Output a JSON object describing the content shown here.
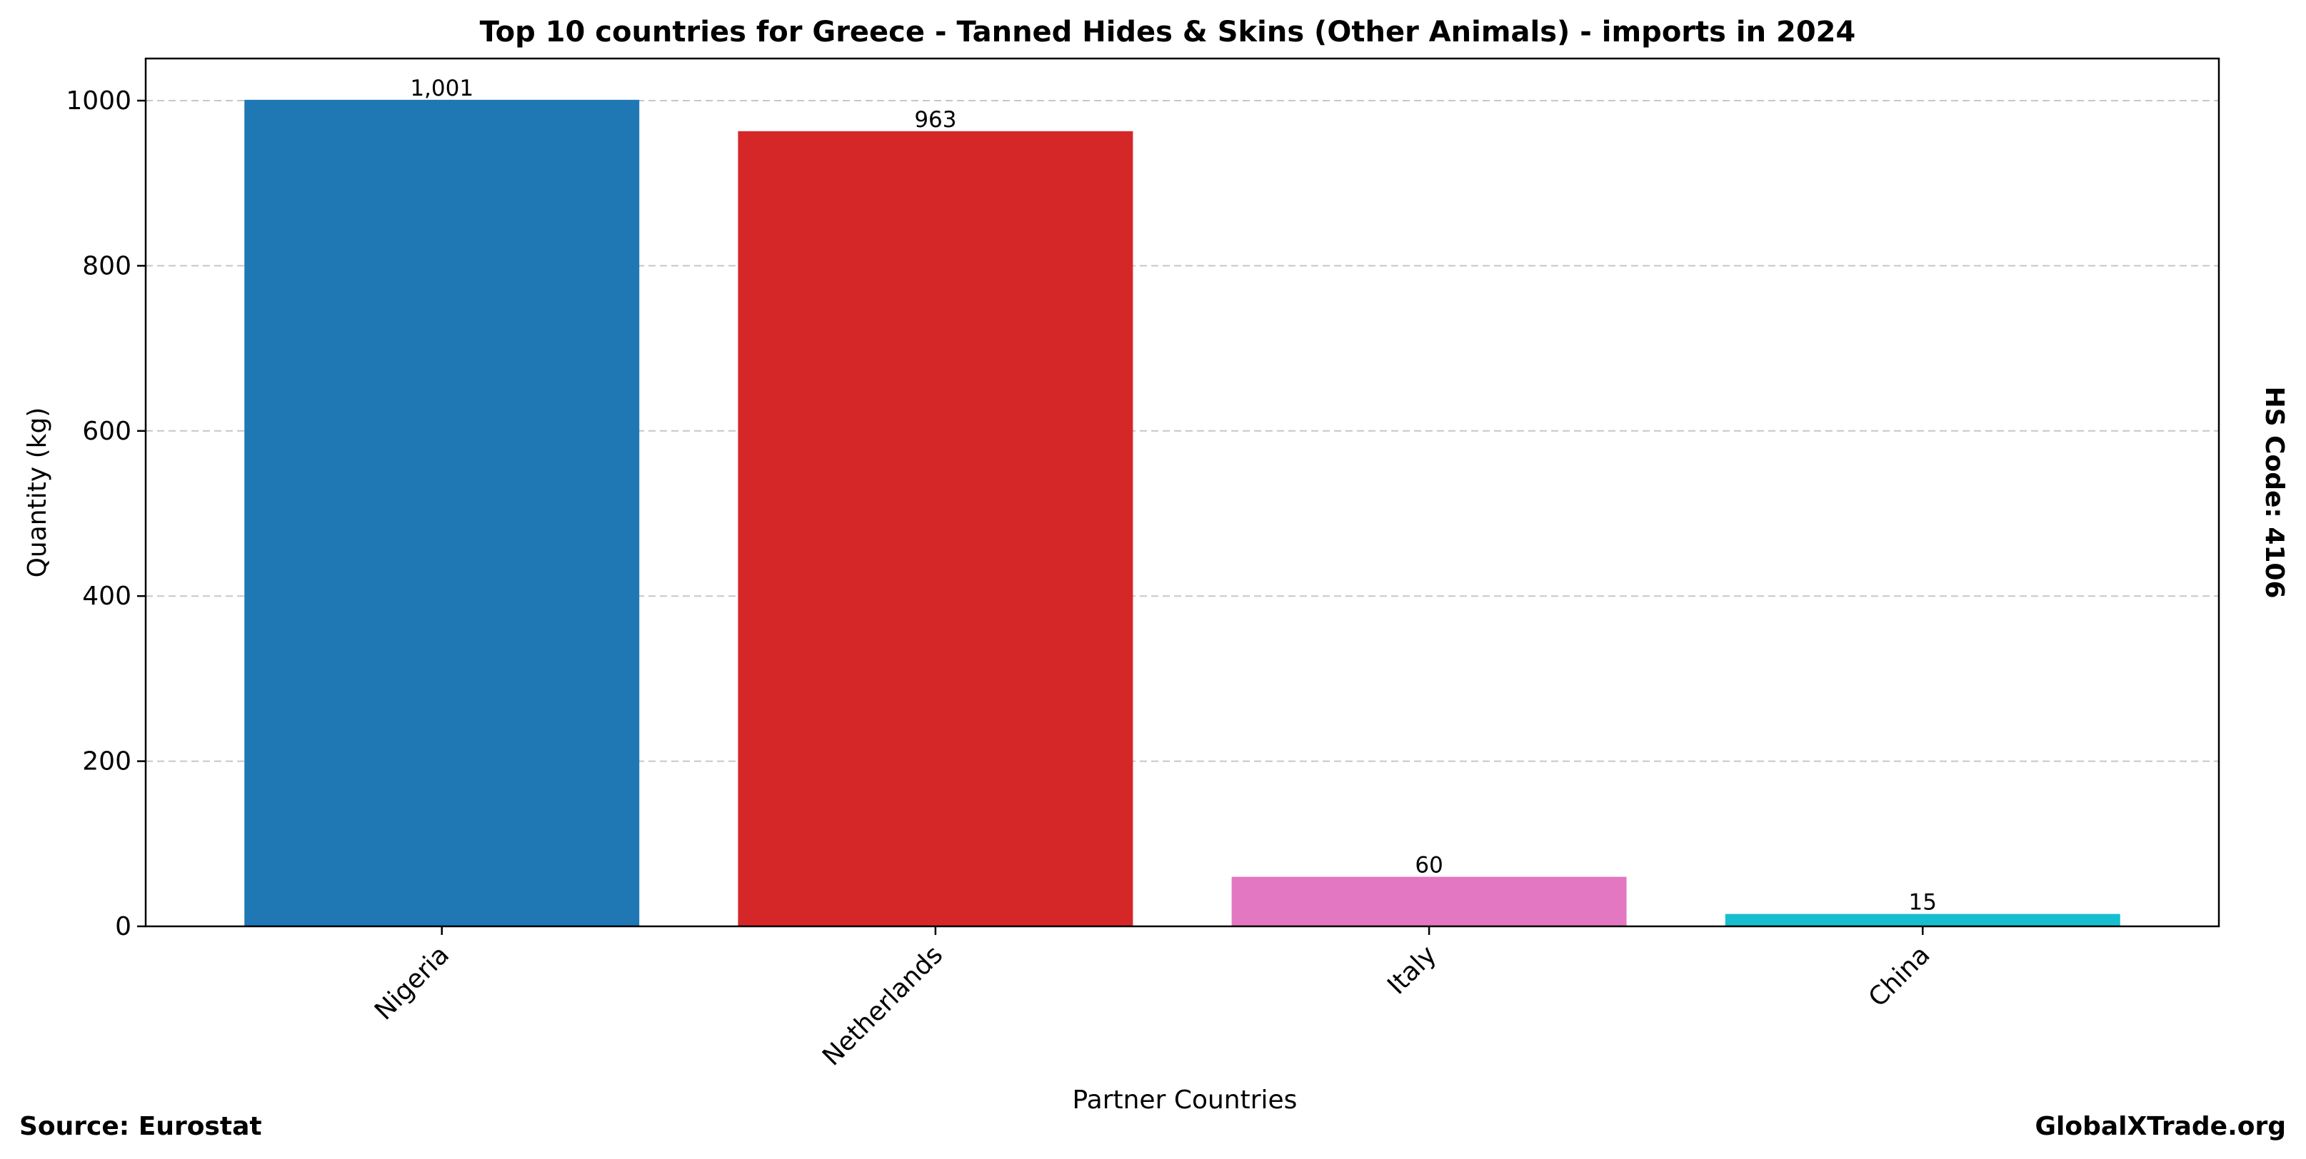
{
  "chart_data": {
    "type": "bar",
    "title": "Top 10 countries for Greece - Tanned Hides & Skins (Other Animals) - imports in 2024",
    "xlabel": "Partner Countries",
    "ylabel": "Quantity (kg)",
    "categories": [
      "Nigeria",
      "Netherlands",
      "Italy",
      "China"
    ],
    "values": [
      1001,
      963,
      60,
      15
    ],
    "value_labels": [
      "1,001",
      "963",
      "60",
      "15"
    ],
    "colors": [
      "#1f77b4",
      "#d62728",
      "#e377c2",
      "#17becf"
    ],
    "ylim": [
      0,
      1051
    ],
    "yticks": [
      0,
      200,
      400,
      600,
      800,
      1000
    ],
    "grid": "y-dashed",
    "legend": "none"
  },
  "footer": {
    "source": "Source: Eurostat",
    "brand": "GlobalXTrade.org"
  },
  "side_note": "HS Code: 4106"
}
